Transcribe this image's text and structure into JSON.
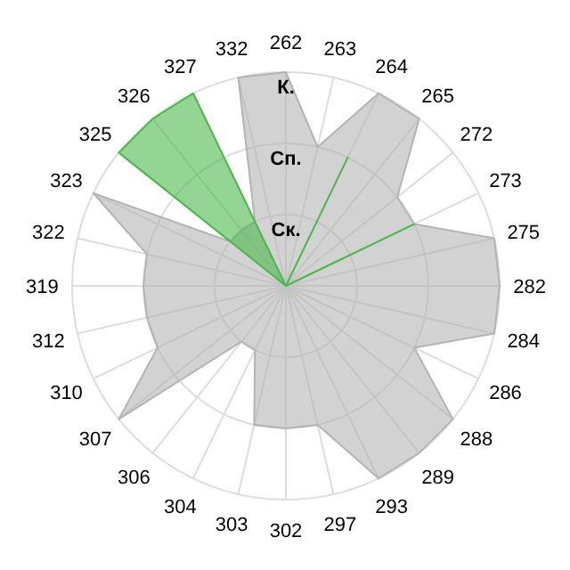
{
  "chart_data": {
    "type": "radar",
    "categories": [
      "262",
      "263",
      "264",
      "265",
      "272",
      "273",
      "275",
      "282",
      "284",
      "286",
      "288",
      "289",
      "293",
      "297",
      "302",
      "303",
      "304",
      "306",
      "307",
      "310",
      "312",
      "319",
      "322",
      "323",
      "325",
      "326",
      "327",
      "332"
    ],
    "ylim": [
      0,
      3
    ],
    "yticks": [
      {
        "value": 1,
        "label": "Ск."
      },
      {
        "value": 2,
        "label": "Сп."
      },
      {
        "value": 3,
        "label": "К."
      }
    ],
    "grid": true,
    "series": [
      {
        "color": "#b4b4b4",
        "values": [
          3,
          2,
          3,
          3,
          2,
          2,
          3,
          3,
          3,
          2,
          3,
          3,
          3,
          2,
          2,
          2,
          1,
          1,
          3,
          2,
          2,
          2,
          2,
          3,
          1,
          1,
          1,
          3
        ]
      },
      {
        "color": "#4cb84c",
        "values": [
          0,
          0,
          2,
          0,
          0,
          2,
          0,
          0,
          0,
          0,
          0,
          0,
          0,
          0,
          0,
          0,
          0,
          0,
          0,
          0,
          0,
          0,
          0,
          0,
          3,
          3,
          3,
          0
        ]
      }
    ]
  }
}
